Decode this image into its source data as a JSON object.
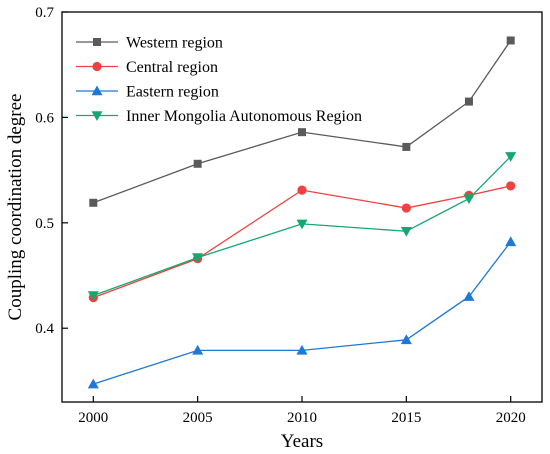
{
  "chart_data": {
    "type": "line",
    "title": "",
    "xlabel": "Years",
    "ylabel": "Coupling coordination degree",
    "x": [
      2000,
      2005,
      2010,
      2015,
      2018,
      2020
    ],
    "xticks": [
      2000,
      2005,
      2010,
      2015,
      2020
    ],
    "xlim": [
      1998.5,
      2021.5
    ],
    "yticks": [
      0.4,
      0.5,
      0.6,
      0.7
    ],
    "ylim": [
      0.33,
      0.7
    ],
    "grid": false,
    "legend_position": "top-left",
    "series": [
      {
        "name": "Western region",
        "color": "#5a5a5a",
        "marker": "square",
        "values": [
          0.519,
          0.556,
          0.586,
          0.572,
          0.615,
          0.673
        ]
      },
      {
        "name": "Central region",
        "color": "#f04040",
        "marker": "circle",
        "values": [
          0.429,
          0.466,
          0.531,
          0.514,
          0.526,
          0.535
        ]
      },
      {
        "name": "Eastern region",
        "color": "#1f78d4",
        "marker": "triangle-up",
        "values": [
          0.347,
          0.379,
          0.379,
          0.389,
          0.43,
          0.482
        ]
      },
      {
        "name": "Inner Mongolia Autonomous Region",
        "color": "#14a870",
        "marker": "triangle-down",
        "values": [
          0.431,
          0.467,
          0.499,
          0.492,
          0.523,
          0.563
        ]
      }
    ]
  }
}
